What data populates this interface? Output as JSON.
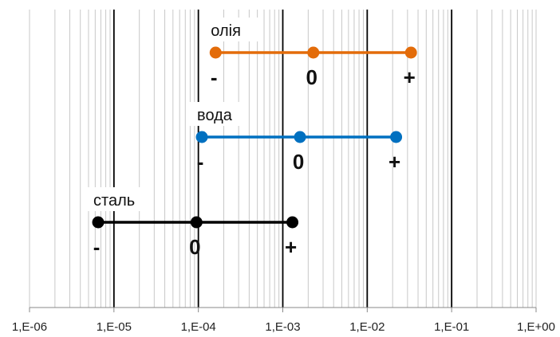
{
  "chart_data": {
    "type": "scatter",
    "title": "",
    "xlabel": "",
    "ylabel": "",
    "x_scale": "log",
    "xlim": [
      1e-06,
      1
    ],
    "x_tick_labels": [
      "1,E-06",
      "1,E-05",
      "1,E-04",
      "1,E-03",
      "1,E-02",
      "1,E-01",
      "1,E+00"
    ],
    "grid": "vertical major and minor",
    "legend": "none",
    "series": [
      {
        "name": "олія",
        "color": "#E36C0A",
        "x": [
          0.00016,
          0.0023,
          0.033
        ],
        "point_labels": [
          "-",
          "0",
          "+"
        ]
      },
      {
        "name": "вода",
        "color": "#0070C0",
        "x": [
          0.00011,
          0.0016,
          0.022
        ],
        "point_labels": [
          "-",
          "0",
          "+"
        ]
      },
      {
        "name": "сталь",
        "color": "#000000",
        "x": [
          6.5e-06,
          9.5e-05,
          0.0013
        ],
        "point_labels": [
          "-",
          "0",
          "+"
        ]
      }
    ]
  }
}
